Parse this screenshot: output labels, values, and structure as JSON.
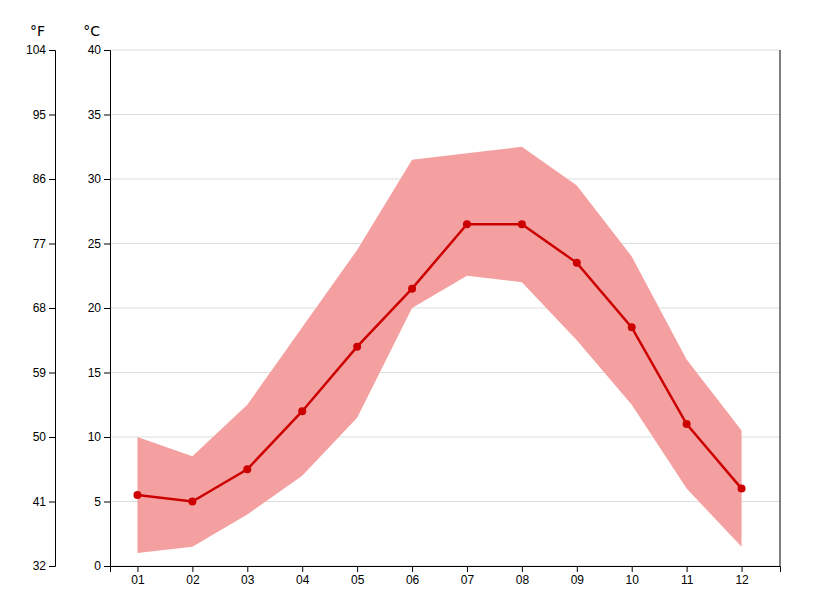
{
  "chart_data": {
    "type": "line",
    "x": [
      1,
      2,
      3,
      4,
      5,
      6,
      7,
      8,
      9,
      10,
      11,
      12
    ],
    "xlim": [
      0.5,
      12.7
    ],
    "xticks": [
      {
        "value": 1,
        "label": "01"
      },
      {
        "value": 2,
        "label": "02"
      },
      {
        "value": 3,
        "label": "03"
      },
      {
        "value": 4,
        "label": "04"
      },
      {
        "value": 5,
        "label": "05"
      },
      {
        "value": 6,
        "label": "06"
      },
      {
        "value": 7,
        "label": "07"
      },
      {
        "value": 8,
        "label": "08"
      },
      {
        "value": 9,
        "label": "09"
      },
      {
        "value": 10,
        "label": "10"
      },
      {
        "value": 11,
        "label": "11"
      },
      {
        "value": 12,
        "label": "12"
      }
    ],
    "ylabel": "°C",
    "ylim": [
      0,
      40
    ],
    "yticks": [
      0,
      5,
      10,
      15,
      20,
      25,
      30,
      35,
      40
    ],
    "y2label": "°F",
    "y2lim": [
      32,
      104
    ],
    "y2ticks": [
      32,
      41,
      50,
      59,
      68,
      77,
      86,
      95,
      104
    ],
    "grid": true,
    "series": [
      {
        "type": "band",
        "color": "#f5a0a0",
        "low": [
          1.0,
          1.5,
          4.0,
          7.0,
          11.5,
          20.0,
          22.5,
          22.0,
          17.5,
          12.5,
          6.0,
          1.5
        ],
        "high": [
          10.0,
          8.5,
          12.5,
          18.5,
          24.5,
          31.5,
          32.0,
          32.5,
          29.5,
          24.0,
          16.0,
          10.5
        ]
      },
      {
        "type": "line",
        "color": "#cc0000",
        "marker": "circle",
        "values": [
          5.5,
          5.0,
          7.5,
          12.0,
          17.0,
          21.5,
          26.5,
          26.5,
          23.5,
          18.5,
          11.0,
          6.0
        ]
      }
    ]
  }
}
